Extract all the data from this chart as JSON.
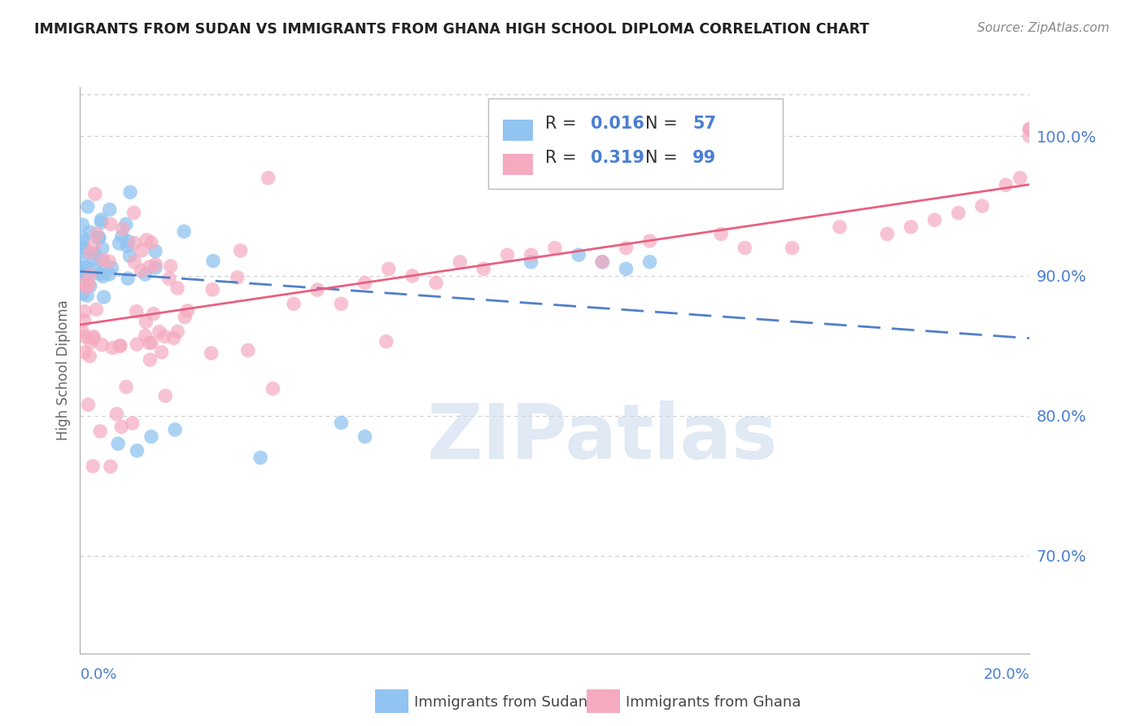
{
  "title": "IMMIGRANTS FROM SUDAN VS IMMIGRANTS FROM GHANA HIGH SCHOOL DIPLOMA CORRELATION CHART",
  "source": "Source: ZipAtlas.com",
  "ylabel": "High School Diploma",
  "xlim": [
    0.0,
    20.0
  ],
  "ylim": [
    63.0,
    103.5
  ],
  "yticks": [
    70.0,
    80.0,
    90.0,
    100.0
  ],
  "ytick_labels": [
    "70.0%",
    "80.0%",
    "90.0%",
    "100.0%"
  ],
  "watermark": "ZIPatlas",
  "legend_sudan_R": "0.016",
  "legend_sudan_N": "57",
  "legend_ghana_R": "0.319",
  "legend_ghana_N": "99",
  "color_sudan": "#91C4F0",
  "color_ghana": "#F5AABF",
  "color_line_sudan": "#5080C8",
  "color_line_ghana": "#E86080",
  "color_blue": "#4A7FD0",
  "color_axis_labels": "#4A7FD0",
  "color_text_dark": "#333333",
  "color_grid": "#cccccc",
  "color_spine": "#aaaaaa"
}
